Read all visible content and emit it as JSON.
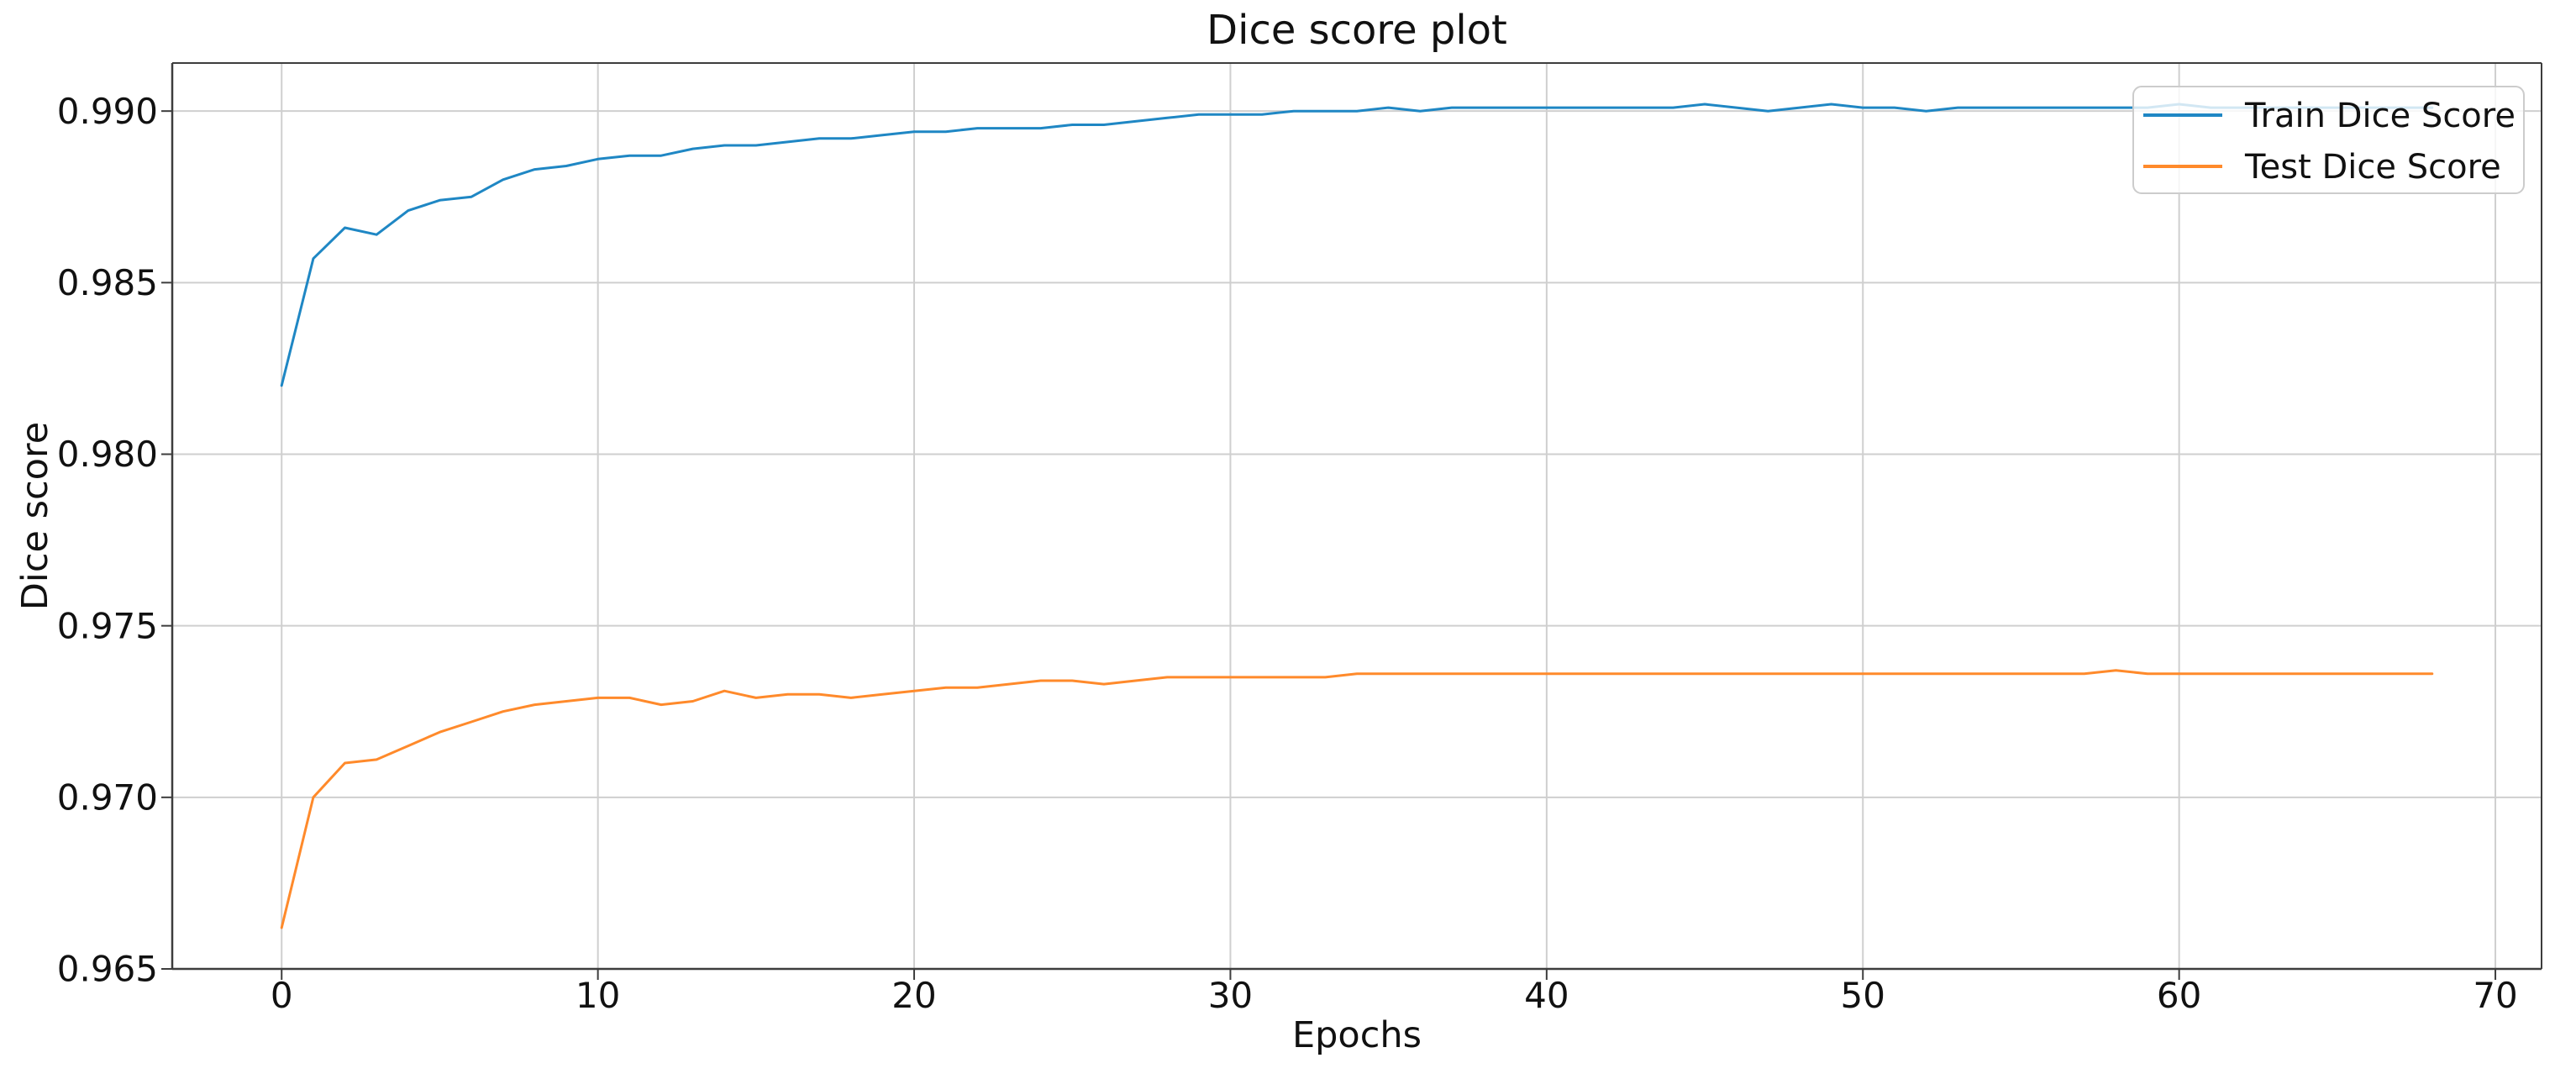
{
  "figure": {
    "background": "#ffffff",
    "text_color": "#111111",
    "grid_color": "#cfcfcf",
    "spine_color": "#3d3d3d",
    "legend_border_color": "#cccccc"
  },
  "chart_data": {
    "type": "line",
    "title": "Dice score plot",
    "xlabel": "Epochs",
    "ylabel": "Dice score",
    "xlim": [
      -3.46,
      71.46
    ],
    "ylim": [
      0.965,
      0.9914
    ],
    "xticks": [
      0,
      10,
      20,
      30,
      40,
      50,
      60,
      70
    ],
    "yticks": [
      0.965,
      0.97,
      0.975,
      0.98,
      0.985,
      0.99
    ],
    "ytick_decimals": 3,
    "grid": true,
    "legend_position": "upper right",
    "x": [
      0,
      1,
      2,
      3,
      4,
      5,
      6,
      7,
      8,
      9,
      10,
      11,
      12,
      13,
      14,
      15,
      16,
      17,
      18,
      19,
      20,
      21,
      22,
      23,
      24,
      25,
      26,
      27,
      28,
      29,
      30,
      31,
      32,
      33,
      34,
      35,
      36,
      37,
      38,
      39,
      40,
      41,
      42,
      43,
      44,
      45,
      46,
      47,
      48,
      49,
      50,
      51,
      52,
      53,
      54,
      55,
      56,
      57,
      58,
      59,
      60,
      61,
      62,
      63,
      64,
      65,
      66,
      67,
      68
    ],
    "series": [
      {
        "name": "Train Dice Score",
        "color": "#1f87c4",
        "values": [
          0.982,
          0.9857,
          0.9866,
          0.9864,
          0.9871,
          0.9874,
          0.9875,
          0.988,
          0.9883,
          0.9884,
          0.9886,
          0.9887,
          0.9887,
          0.9889,
          0.989,
          0.989,
          0.9891,
          0.9892,
          0.9892,
          0.9893,
          0.9894,
          0.9894,
          0.9895,
          0.9895,
          0.9895,
          0.9896,
          0.9896,
          0.9897,
          0.9898,
          0.9899,
          0.9899,
          0.9899,
          0.99,
          0.99,
          0.99,
          0.9901,
          0.99,
          0.9901,
          0.9901,
          0.9901,
          0.9901,
          0.9901,
          0.9901,
          0.9901,
          0.9901,
          0.9902,
          0.9901,
          0.99,
          0.9901,
          0.9902,
          0.9901,
          0.9901,
          0.99,
          0.9901,
          0.9901,
          0.9901,
          0.9901,
          0.9901,
          0.9901,
          0.9901,
          0.9902,
          0.9901,
          0.9901,
          0.9901,
          0.9901,
          0.9901,
          0.9901,
          0.9901,
          0.9901
        ]
      },
      {
        "name": "Test Dice Score",
        "color": "#ff8a2b",
        "values": [
          0.9662,
          0.97,
          0.971,
          0.9711,
          0.9715,
          0.9719,
          0.9722,
          0.9725,
          0.9727,
          0.9728,
          0.9729,
          0.9729,
          0.9727,
          0.9728,
          0.9731,
          0.9729,
          0.973,
          0.973,
          0.9729,
          0.973,
          0.9731,
          0.9732,
          0.9732,
          0.9733,
          0.9734,
          0.9734,
          0.9733,
          0.9734,
          0.9735,
          0.9735,
          0.9735,
          0.9735,
          0.9735,
          0.9735,
          0.9736,
          0.9736,
          0.9736,
          0.9736,
          0.9736,
          0.9736,
          0.9736,
          0.9736,
          0.9736,
          0.9736,
          0.9736,
          0.9736,
          0.9736,
          0.9736,
          0.9736,
          0.9736,
          0.9736,
          0.9736,
          0.9736,
          0.9736,
          0.9736,
          0.9736,
          0.9736,
          0.9736,
          0.9737,
          0.9736,
          0.9736,
          0.9736,
          0.9736,
          0.9736,
          0.9736,
          0.9736,
          0.9736,
          0.9736,
          0.9736
        ]
      }
    ]
  }
}
